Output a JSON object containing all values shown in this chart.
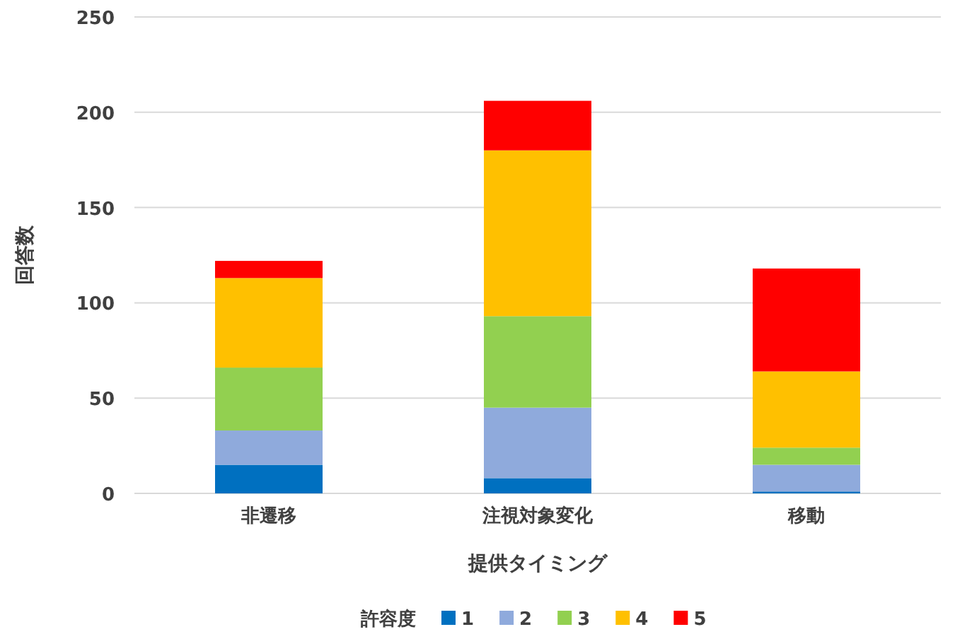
{
  "chart_data": {
    "type": "bar",
    "stacked": true,
    "xlabel": "提供タイミング",
    "ylabel": "回答数",
    "legend_title": "許容度",
    "legend": "bottom",
    "grid": "y",
    "categories": [
      "非遷移",
      "注視対象変化",
      "移動"
    ],
    "ylim": [
      0,
      250
    ],
    "yticks": [
      0,
      50,
      100,
      150,
      200,
      250
    ],
    "series": [
      {
        "name": "1",
        "color": "#0070c0",
        "values": [
          15,
          8,
          1
        ]
      },
      {
        "name": "2",
        "color": "#8faadc",
        "values": [
          18,
          37,
          14
        ]
      },
      {
        "name": "3",
        "color": "#92d050",
        "values": [
          33,
          48,
          9
        ]
      },
      {
        "name": "4",
        "color": "#ffc000",
        "values": [
          47,
          87,
          40
        ]
      },
      {
        "name": "5",
        "color": "#ff0000",
        "values": [
          9,
          26,
          54
        ]
      }
    ]
  }
}
